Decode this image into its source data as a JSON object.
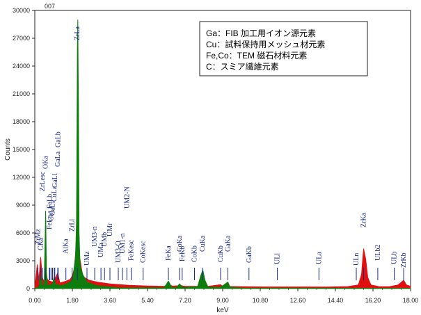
{
  "chart_data": {
    "type": "area",
    "corner_label": "007",
    "xlabel": "keV",
    "ylabel": "Counts",
    "xlim": [
      0,
      18
    ],
    "ylim": [
      0,
      30000
    ],
    "x_ticks": [
      "0.00",
      "1.80",
      "3.60",
      "5.40",
      "7.20",
      "9.00",
      "10.80",
      "12.60",
      "14.40",
      "16.20",
      "18.00"
    ],
    "y_ticks": [
      "0",
      "3000",
      "6000",
      "9000",
      "12000",
      "15000",
      "18000",
      "21000",
      "24000",
      "27000",
      "30000"
    ],
    "grid": false,
    "legend_position": "top-right",
    "annotation_lines": [
      "Ga：FIB 加工用イオン源元素",
      "Cu：試料保持用メッシュ材元素",
      "Fe,Co：TEM 磁石材料元素",
      "C：スミア繊維元素"
    ],
    "series": [
      {
        "name": "spectrum",
        "color": "#e01010",
        "points": [
          [
            0.0,
            0
          ],
          [
            0.12,
            2600
          ],
          [
            0.2,
            900
          ],
          [
            0.28,
            3400
          ],
          [
            0.36,
            1200
          ],
          [
            0.45,
            700
          ],
          [
            0.52,
            2200
          ],
          [
            0.6,
            1000
          ],
          [
            0.7,
            800
          ],
          [
            0.9,
            700
          ],
          [
            1.1,
            1700
          ],
          [
            1.2,
            600
          ],
          [
            1.5,
            800
          ],
          [
            1.7,
            1000
          ],
          [
            1.82,
            1500
          ],
          [
            1.9,
            2300
          ],
          [
            1.98,
            4500
          ],
          [
            2.04,
            14000
          ],
          [
            2.08,
            10000
          ],
          [
            2.14,
            3500
          ],
          [
            2.3,
            1300
          ],
          [
            2.6,
            900
          ],
          [
            3.0,
            700
          ],
          [
            3.6,
            500
          ],
          [
            4.5,
            350
          ],
          [
            5.4,
            280
          ],
          [
            6.2,
            250
          ],
          [
            6.4,
            450
          ],
          [
            6.6,
            260
          ],
          [
            7.0,
            320
          ],
          [
            7.2,
            240
          ],
          [
            7.8,
            250
          ],
          [
            8.04,
            600
          ],
          [
            8.3,
            250
          ],
          [
            8.9,
            420
          ],
          [
            9.0,
            230
          ],
          [
            10.0,
            200
          ],
          [
            11.0,
            180
          ],
          [
            12.0,
            180
          ],
          [
            13.0,
            180
          ],
          [
            14.0,
            170
          ],
          [
            15.0,
            220
          ],
          [
            15.5,
            400
          ],
          [
            15.65,
            1500
          ],
          [
            15.75,
            4300
          ],
          [
            15.85,
            3200
          ],
          [
            15.95,
            1200
          ],
          [
            16.1,
            400
          ],
          [
            16.5,
            200
          ],
          [
            17.0,
            220
          ],
          [
            17.4,
            380
          ],
          [
            17.67,
            900
          ],
          [
            17.8,
            400
          ],
          [
            18.0,
            250
          ]
        ]
      },
      {
        "name": "spectrum-2",
        "color": "#0d7d0d",
        "points": [
          [
            0.0,
            0
          ],
          [
            0.2,
            200
          ],
          [
            0.28,
            1600
          ],
          [
            0.36,
            300
          ],
          [
            0.45,
            400
          ],
          [
            0.52,
            8400
          ],
          [
            0.56,
            1500
          ],
          [
            0.62,
            300
          ],
          [
            0.85,
            500
          ],
          [
            0.93,
            1300
          ],
          [
            1.0,
            300
          ],
          [
            1.1,
            500
          ],
          [
            1.2,
            300
          ],
          [
            1.5,
            500
          ],
          [
            1.75,
            800
          ],
          [
            1.85,
            1500
          ],
          [
            1.95,
            3500
          ],
          [
            2.0,
            7000
          ],
          [
            2.04,
            25800
          ],
          [
            2.06,
            29000
          ],
          [
            2.09,
            20000
          ],
          [
            2.12,
            6000
          ],
          [
            2.17,
            2500
          ],
          [
            2.3,
            1500
          ],
          [
            2.5,
            700
          ],
          [
            3.0,
            300
          ],
          [
            4.0,
            100
          ],
          [
            5.5,
            80
          ],
          [
            6.2,
            100
          ],
          [
            6.4,
            800
          ],
          [
            6.55,
            150
          ],
          [
            6.8,
            100
          ],
          [
            6.93,
            500
          ],
          [
            7.1,
            120
          ],
          [
            7.8,
            200
          ],
          [
            7.95,
            1400
          ],
          [
            8.05,
            2000
          ],
          [
            8.15,
            900
          ],
          [
            8.3,
            150
          ],
          [
            8.9,
            150
          ],
          [
            9.25,
            700
          ],
          [
            9.35,
            150
          ],
          [
            10.0,
            50
          ],
          [
            15.0,
            40
          ],
          [
            18.0,
            30
          ]
        ]
      }
    ],
    "annotations": [
      {
        "text": "CKa",
        "x": 0.28
      },
      {
        "text": "ZrMz",
        "x": 0.15
      },
      {
        "text": "ZrLesc",
        "x": 0.36
      },
      {
        "text": "OKa",
        "x": 0.52
      },
      {
        "text": "FeLa",
        "x": 0.7
      },
      {
        "text": "CoLl",
        "x": 0.78
      },
      {
        "text": "CuLl",
        "x": 0.85
      },
      {
        "text": "FeLb",
        "x": 0.72
      },
      {
        "text": "CuLa",
        "x": 0.93
      },
      {
        "text": "GaLl",
        "x": 0.96
      },
      {
        "text": "GaLa",
        "x": 1.1
      },
      {
        "text": "GaLb",
        "x": 1.12
      },
      {
        "text": "AlKa",
        "x": 1.49
      },
      {
        "text": "ZrLl",
        "x": 1.79
      },
      {
        "text": "ZrLa",
        "x": 2.04
      },
      {
        "text": "UMz",
        "x": 2.5
      },
      {
        "text": "UMa",
        "x": 3.17
      },
      {
        "text": "UM3-n",
        "x": 2.87
      },
      {
        "text": "UMb",
        "x": 3.34
      },
      {
        "text": "UMr",
        "x": 3.6
      },
      {
        "text": "UM3-O",
        "x": 4.0
      },
      {
        "text": "UM1-n",
        "x": 4.2
      },
      {
        "text": "UM2-N",
        "x": 4.41
      },
      {
        "text": "FeKesc",
        "x": 4.62
      },
      {
        "text": "CoKesc",
        "x": 5.19
      },
      {
        "text": "FeKa",
        "x": 6.4
      },
      {
        "text": "FeKb",
        "x": 7.06
      },
      {
        "text": "CoKa",
        "x": 6.93
      },
      {
        "text": "CoKb",
        "x": 7.65
      },
      {
        "text": "CuKa",
        "x": 8.04
      },
      {
        "text": "CuKb",
        "x": 8.9
      },
      {
        "text": "GaKa",
        "x": 9.25
      },
      {
        "text": "GaKb",
        "x": 10.26
      },
      {
        "text": "ULl",
        "x": 11.62
      },
      {
        "text": "ULa",
        "x": 13.61
      },
      {
        "text": "ULn",
        "x": 15.4
      },
      {
        "text": "ZrKa",
        "x": 15.75
      },
      {
        "text": "ULb2",
        "x": 16.43
      },
      {
        "text": "ULb",
        "x": 17.22
      },
      {
        "text": "ZrKb",
        "x": 17.67
      }
    ]
  }
}
